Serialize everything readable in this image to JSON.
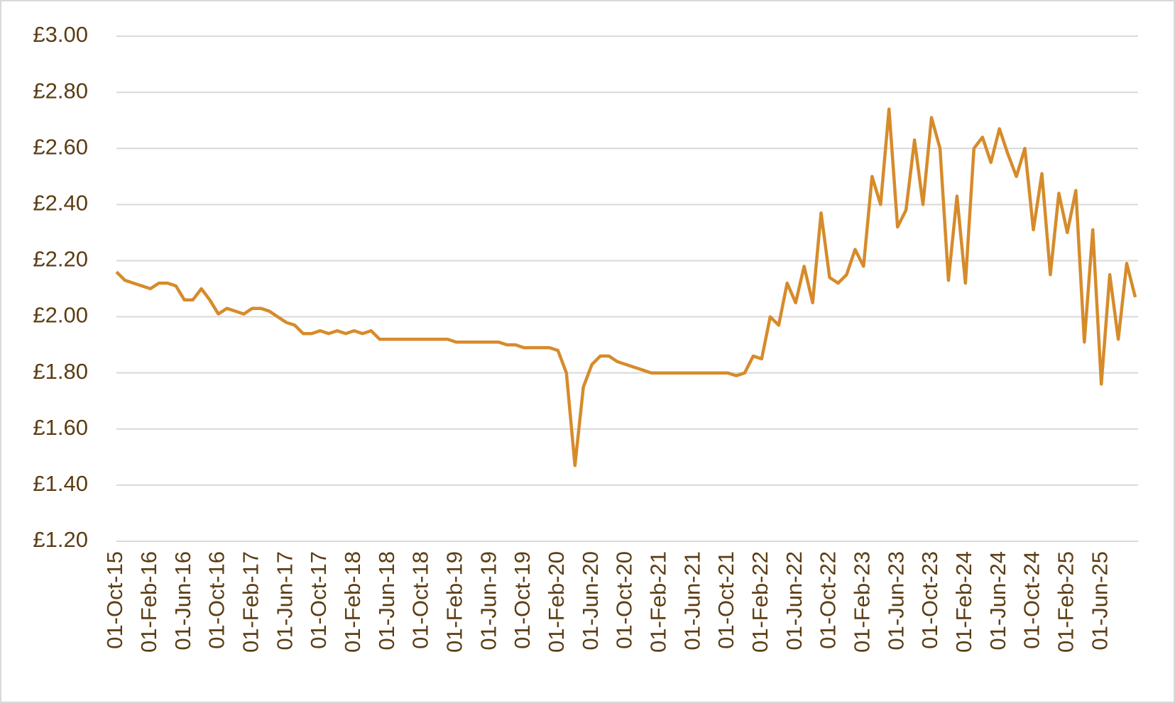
{
  "chart_data": {
    "type": "line",
    "categories": [
      "01-Oct-15",
      null,
      null,
      null,
      "01-Feb-16",
      null,
      null,
      null,
      "01-Jun-16",
      null,
      null,
      null,
      "01-Oct-16",
      null,
      null,
      null,
      "01-Feb-17",
      null,
      null,
      null,
      "01-Jun-17",
      null,
      null,
      null,
      "01-Oct-17",
      null,
      null,
      null,
      "01-Feb-18",
      null,
      null,
      null,
      "01-Jun-18",
      null,
      null,
      null,
      "01-Oct-18",
      null,
      null,
      null,
      "01-Feb-19",
      null,
      null,
      null,
      "01-Jun-19",
      null,
      null,
      null,
      "01-Oct-19",
      null,
      null,
      null,
      "01-Feb-20",
      null,
      null,
      null,
      "01-Jun-20",
      null,
      null,
      null,
      "01-Oct-20",
      null,
      null,
      null,
      "01-Feb-21",
      null,
      null,
      null,
      "01-Jun-21",
      null,
      null,
      null,
      "01-Oct-21",
      null,
      null,
      null,
      "01-Feb-22",
      null,
      null,
      null,
      "01-Jun-22",
      null,
      null,
      null,
      "01-Oct-22",
      null,
      null,
      null,
      "01-Feb-23",
      null,
      null,
      null,
      "01-Jun-23",
      null,
      null,
      null,
      "01-Oct-23",
      null,
      null,
      null,
      "01-Feb-24",
      null,
      null,
      null,
      "01-Jun-24",
      null,
      null,
      null,
      "01-Oct-24",
      null,
      null,
      null,
      "01-Feb-25",
      null,
      null,
      null,
      "01-Jun-25",
      null,
      null,
      null,
      null
    ],
    "values": [
      2.16,
      2.13,
      2.12,
      2.11,
      2.1,
      2.12,
      2.12,
      2.11,
      2.06,
      2.06,
      2.1,
      2.06,
      2.01,
      2.03,
      2.02,
      2.01,
      2.03,
      2.03,
      2.02,
      2.0,
      1.98,
      1.97,
      1.94,
      1.94,
      1.95,
      1.94,
      1.95,
      1.94,
      1.95,
      1.94,
      1.95,
      1.92,
      1.92,
      1.92,
      1.92,
      1.92,
      1.92,
      1.92,
      1.92,
      1.92,
      1.91,
      1.91,
      1.91,
      1.91,
      1.91,
      1.91,
      1.9,
      1.9,
      1.89,
      1.89,
      1.89,
      1.89,
      1.88,
      1.8,
      1.47,
      1.75,
      1.83,
      1.86,
      1.86,
      1.84,
      1.83,
      1.82,
      1.81,
      1.8,
      1.8,
      1.8,
      1.8,
      1.8,
      1.8,
      1.8,
      1.8,
      1.8,
      1.8,
      1.79,
      1.8,
      1.86,
      1.85,
      2.0,
      1.97,
      2.12,
      2.05,
      2.18,
      2.05,
      2.37,
      2.14,
      2.12,
      2.15,
      2.24,
      2.18,
      2.5,
      2.4,
      2.74,
      2.32,
      2.38,
      2.63,
      2.4,
      2.71,
      2.6,
      2.13,
      2.43,
      2.12,
      2.6,
      2.64,
      2.55,
      2.67,
      2.58,
      2.5,
      2.6,
      2.31,
      2.51,
      2.15,
      2.44,
      2.3,
      2.45,
      1.91,
      2.31,
      1.76,
      2.15,
      1.92,
      2.19,
      2.07
    ],
    "color": "#d68b2b",
    "ylim": [
      1.2,
      3.0
    ],
    "yticks": [
      {
        "value": 1.2,
        "label": "£1.20"
      },
      {
        "value": 1.4,
        "label": "£1.40"
      },
      {
        "value": 1.6,
        "label": "£1.60"
      },
      {
        "value": 1.8,
        "label": "£1.80"
      },
      {
        "value": 2.0,
        "label": "£2.00"
      },
      {
        "value": 2.2,
        "label": "£2.20"
      },
      {
        "value": 2.4,
        "label": "£2.40"
      },
      {
        "value": 2.6,
        "label": "£2.60"
      },
      {
        "value": 2.8,
        "label": "£2.80"
      },
      {
        "value": 3.0,
        "label": "£3.00"
      }
    ],
    "grid": true
  }
}
